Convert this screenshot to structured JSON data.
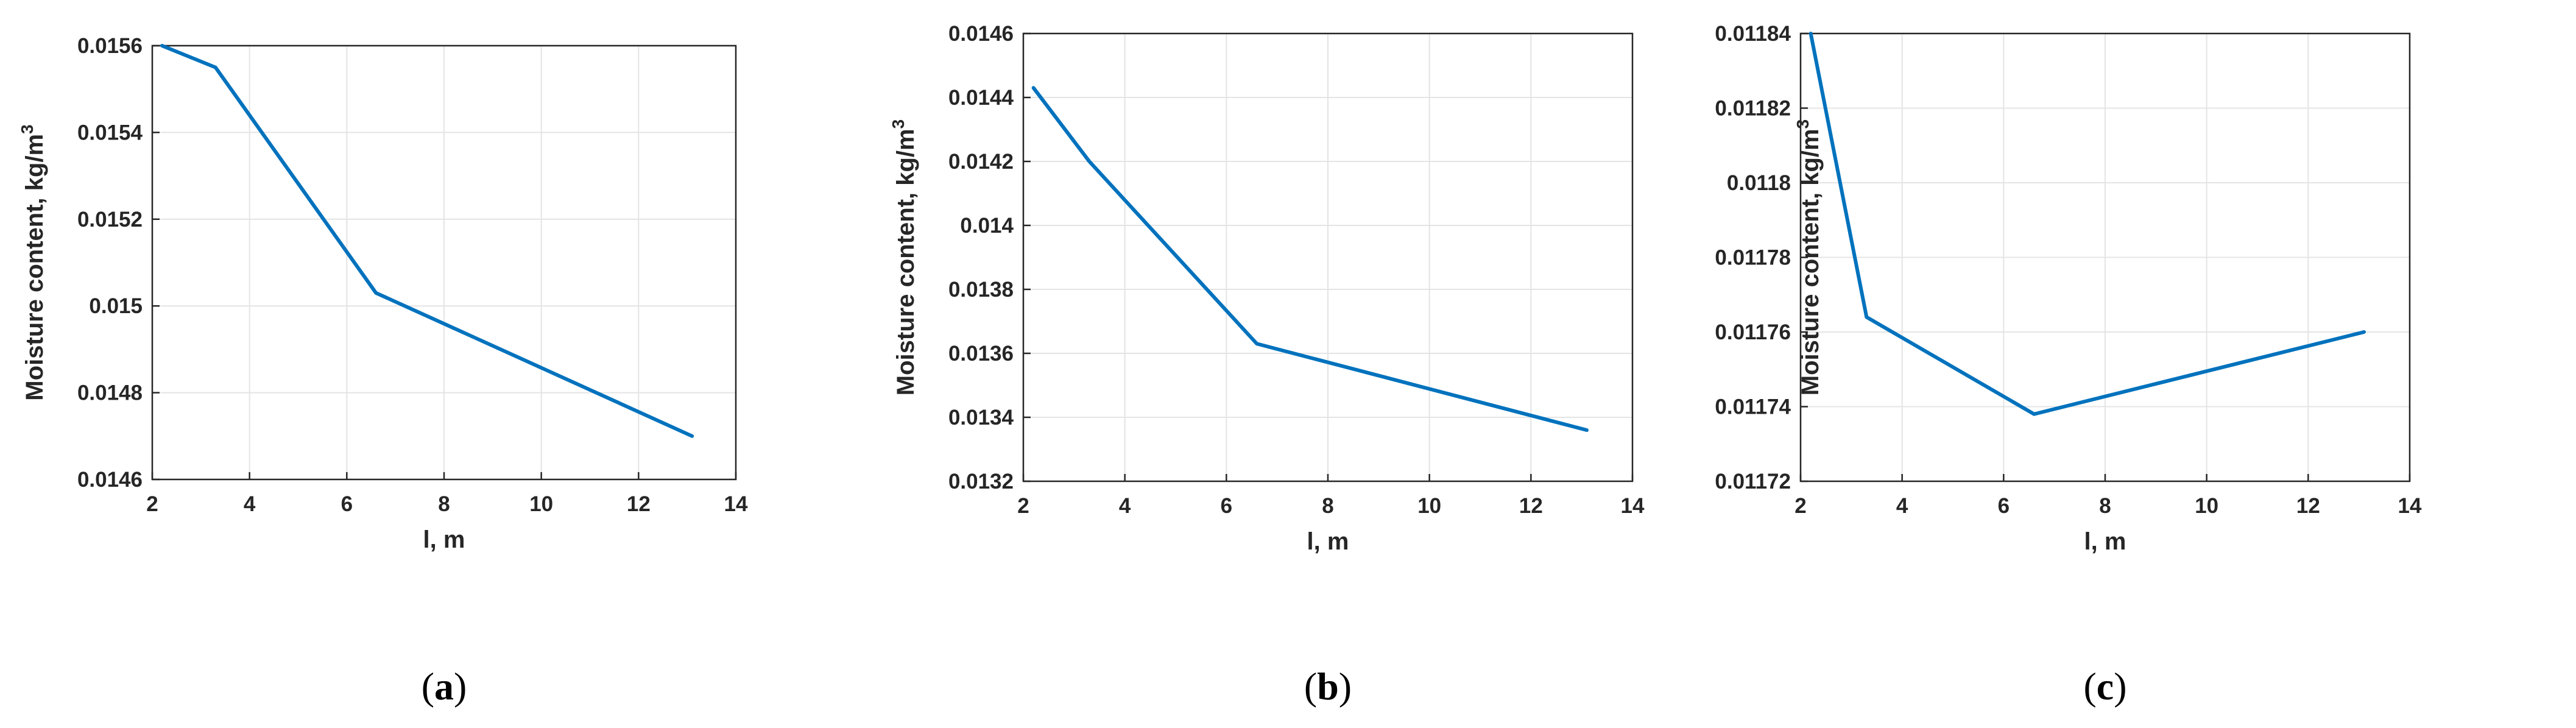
{
  "chart_data": [
    {
      "type": "line",
      "panel_label": "a",
      "xlabel": "l, m",
      "ylabel": "Moisture content, kg/m",
      "ylabel_superscript": "3",
      "xlim": [
        2,
        14
      ],
      "ylim": [
        0.0146,
        0.0156
      ],
      "xticks": [
        "2",
        "4",
        "6",
        "8",
        "10",
        "12",
        "14"
      ],
      "yticks": [
        "0.0146",
        "0.0148",
        "0.015",
        "0.0152",
        "0.0154",
        "0.0156"
      ],
      "grid": true,
      "series": [
        {
          "color": "#0072BD",
          "x": [
            2.2,
            3.3,
            6.6,
            13.1
          ],
          "y": [
            0.0156,
            0.01555,
            0.01503,
            0.0147
          ]
        }
      ]
    },
    {
      "type": "line",
      "panel_label": "b",
      "xlabel": "l, m",
      "ylabel": "Moisture content, kg/m",
      "ylabel_superscript": "3",
      "xlim": [
        2,
        14
      ],
      "ylim": [
        0.0132,
        0.0146
      ],
      "xticks": [
        "2",
        "4",
        "6",
        "8",
        "10",
        "12",
        "14"
      ],
      "yticks": [
        "0.0132",
        "0.0134",
        "0.0136",
        "0.0138",
        "0.014",
        "0.0142",
        "0.0144",
        "0.0146"
      ],
      "grid": true,
      "series": [
        {
          "color": "#0072BD",
          "x": [
            2.2,
            3.3,
            6.6,
            13.1
          ],
          "y": [
            0.01443,
            0.0142,
            0.01363,
            0.01336
          ]
        }
      ]
    },
    {
      "type": "line",
      "panel_label": "c",
      "xlabel": "l, m",
      "ylabel": "Moisture content, kg/m",
      "ylabel_superscript": "3",
      "xlim": [
        2,
        14
      ],
      "ylim": [
        0.01172,
        0.01184
      ],
      "xticks": [
        "2",
        "4",
        "6",
        "8",
        "10",
        "12",
        "14"
      ],
      "yticks": [
        "0.01172",
        "0.01174",
        "0.01176",
        "0.01178",
        "0.0118",
        "0.01182",
        "0.01184"
      ],
      "grid": true,
      "series": [
        {
          "color": "#0072BD",
          "x": [
            2.2,
            3.3,
            6.6,
            13.1
          ],
          "y": [
            0.01184,
            0.011764,
            0.011738,
            0.01176
          ]
        }
      ]
    }
  ]
}
